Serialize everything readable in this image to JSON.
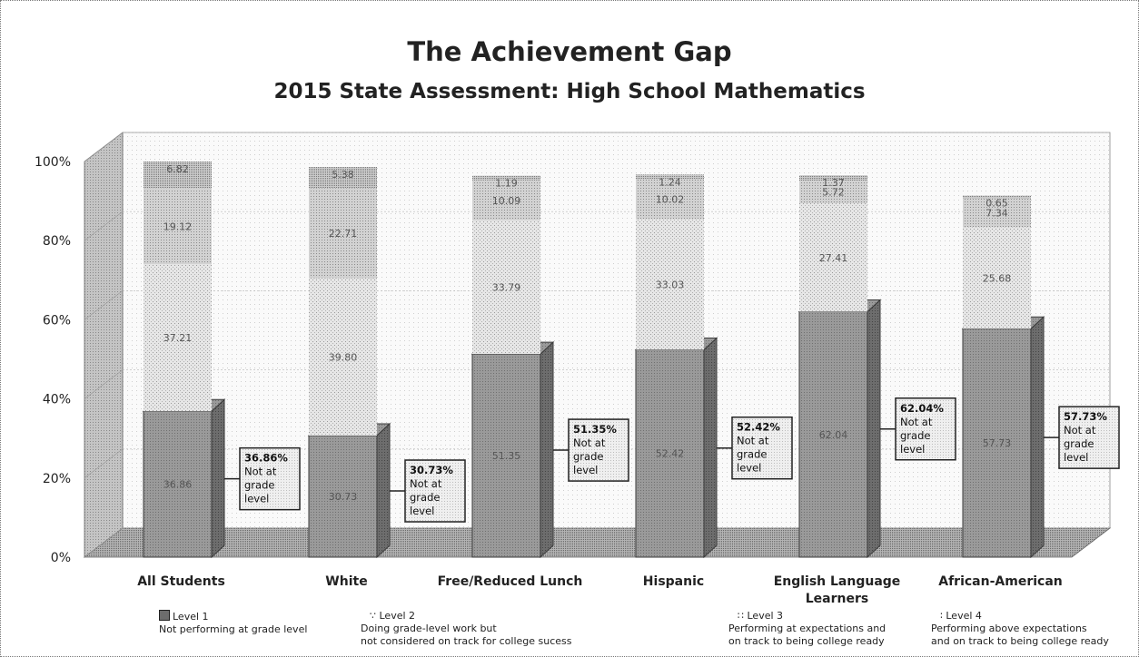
{
  "chart_data": {
    "type": "bar",
    "stacked": true,
    "title": "The Achievement Gap",
    "subtitle": "2015 State Assessment: High School Mathematics",
    "categories": [
      "All Students",
      "White",
      "Free/Reduced Lunch",
      "Hispanic",
      "English Language Learners",
      "African-American"
    ],
    "series": [
      {
        "name": "Level 1",
        "values": [
          36.86,
          30.73,
          51.35,
          52.42,
          62.04,
          57.73
        ],
        "labels": [
          "36.86",
          "30.73",
          "51.35",
          "52.42",
          "62.04",
          "57.73"
        ]
      },
      {
        "name": "Level 2",
        "values": [
          37.21,
          39.8,
          33.79,
          33.03,
          27.41,
          25.68
        ],
        "labels": [
          "37.21",
          "39.80",
          "33.79",
          "33.03",
          "27.41",
          "25.68"
        ]
      },
      {
        "name": "Level 3",
        "values": [
          19.12,
          22.71,
          10.09,
          10.02,
          5.72,
          7.34
        ],
        "labels": [
          "19.12",
          "22.71",
          "10.09",
          "10.02",
          "5.72",
          "7.34"
        ]
      },
      {
        "name": "Level 4",
        "values": [
          6.82,
          5.38,
          1.19,
          1.24,
          1.37,
          0.65
        ],
        "labels": [
          "6.82",
          "5.38",
          "1.19",
          "1.24",
          "1.37",
          "0.65"
        ]
      }
    ],
    "callouts": [
      {
        "pct": "36.86%",
        "lines": [
          "Not at",
          "grade",
          "level"
        ]
      },
      {
        "pct": "30.73%",
        "lines": [
          "Not at",
          "grade",
          "level"
        ]
      },
      {
        "pct": "51.35%",
        "lines": [
          "Not at",
          "grade",
          "level"
        ]
      },
      {
        "pct": "52.42%",
        "lines": [
          "Not at",
          "grade",
          "level"
        ]
      },
      {
        "pct": "62.04%",
        "lines": [
          "Not at",
          "grade",
          "level"
        ]
      },
      {
        "pct": "57.73%",
        "lines": [
          "Not at",
          "grade",
          "level"
        ]
      }
    ],
    "y_ticks": [
      "0%",
      "20%",
      "40%",
      "60%",
      "80%",
      "100%"
    ],
    "ylim": [
      0,
      100
    ],
    "legend": [
      {
        "name": "Level 1",
        "desc": [
          "Not performing at grade level"
        ]
      },
      {
        "name": "Level 2",
        "desc": [
          "Doing grade-level work but",
          "not considered on track for college sucess"
        ]
      },
      {
        "name": "Level 3",
        "desc": [
          "Performing at expectations and",
          "on track to being college ready"
        ]
      },
      {
        "name": "Level 4",
        "desc": [
          "Performing above expectations",
          "and on track to being college ready"
        ]
      }
    ],
    "legend_placement": "bottom",
    "colors": {
      "level1": "#9a9a9a",
      "level2": "#e4e4e4",
      "level3": "#cfcfcf",
      "level4": "#c2c2c2",
      "wall": "#bdbdbd",
      "floor": "#a8a8a8",
      "callout_bg": "#ececec"
    }
  }
}
